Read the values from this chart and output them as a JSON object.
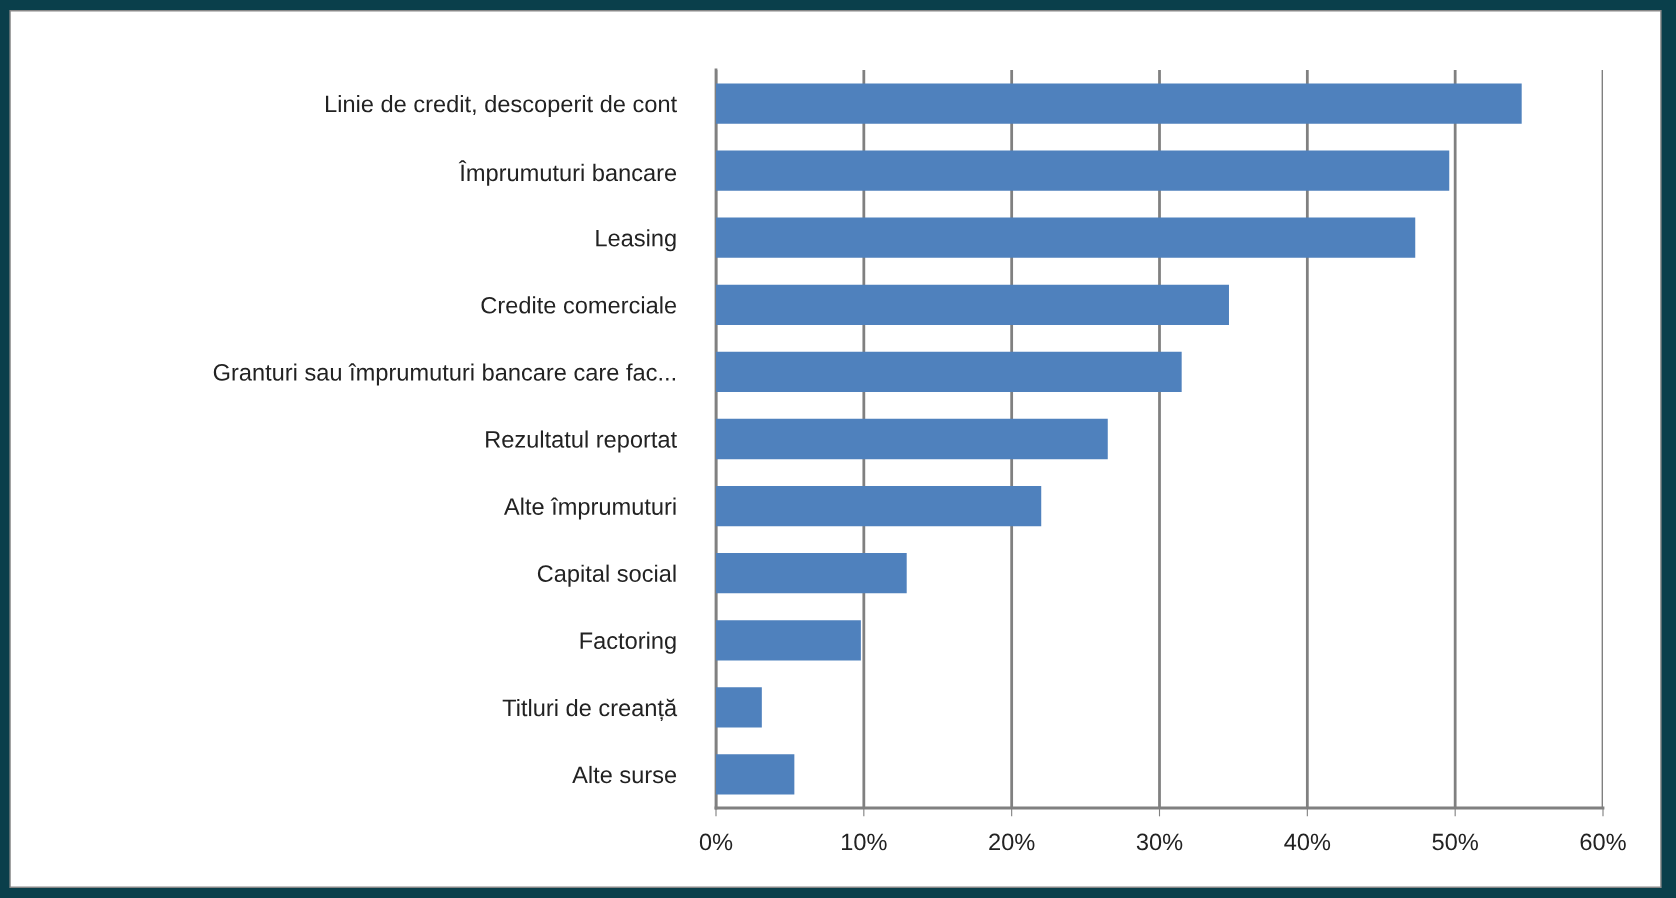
{
  "chart_data": {
    "type": "bar",
    "orientation": "horizontal",
    "categories": [
      "Linie de credit, descoperit de cont",
      "Împrumuturi bancare",
      "Leasing",
      "Credite comerciale",
      "Granturi sau împrumuturi bancare care fac...",
      "Rezultatul reportat",
      "Alte împrumuturi",
      "Capital social",
      "Factoring",
      "Titluri de creanță",
      "Alte surse"
    ],
    "values": [
      54.5,
      49.6,
      47.3,
      34.7,
      31.5,
      26.5,
      22.0,
      12.9,
      9.8,
      3.1,
      5.3
    ],
    "color": "#4f81bd",
    "xlim": [
      0,
      60
    ],
    "xticks": [
      {
        "value": 0,
        "label": "0%"
      },
      {
        "value": 10,
        "label": "10%"
      },
      {
        "value": 20,
        "label": "20%"
      },
      {
        "value": 30,
        "label": "30%"
      },
      {
        "value": 40,
        "label": "40%"
      },
      {
        "value": 50,
        "label": "50%"
      },
      {
        "value": 60,
        "label": "60%"
      }
    ],
    "grid": "x"
  }
}
